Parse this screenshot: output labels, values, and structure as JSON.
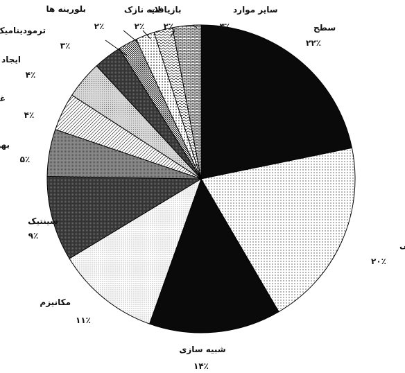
{
  "chart_data": {
    "type": "pie",
    "title": "",
    "start_angle_deg": 0,
    "direction": "clockwise",
    "slices": [
      {
        "label": "سطح",
        "value": 22,
        "value_label": "۲۲٪",
        "pattern": "solid-black"
      },
      {
        "label": "ایزومرهای فضایی",
        "value": 20,
        "value_label": "۲۰٪",
        "pattern": "dots"
      },
      {
        "label": "شبیه سازی",
        "value": 14,
        "value_label": "۱۴٪",
        "pattern": "solid-black"
      },
      {
        "label": "مکانیزم",
        "value": 11,
        "value_label": "۱۱٪",
        "pattern": "fine-dots"
      },
      {
        "label": "سینتیک",
        "value": 9,
        "value_label": "۹٪",
        "pattern": "dark-gray"
      },
      {
        "label": "بهینه سازی",
        "value": 5,
        "value_label": "۵٪",
        "pattern": "mid-gray"
      },
      {
        "label": "غیر فعال شدگی",
        "value": 4,
        "value_label": "۴٪",
        "pattern": "light-diagonal"
      },
      {
        "label": "ایجاد گروه عاملی",
        "value": 4,
        "value_label": "۴٪",
        "pattern": "light-gray"
      },
      {
        "label": "ترمودینامیک",
        "value": 3,
        "value_label": "۳٪",
        "pattern": "dark-gray"
      },
      {
        "label": "بلورینه ها",
        "value": 2,
        "value_label": "۲٪",
        "pattern": "dense-diagonal"
      },
      {
        "label": "بازیافت",
        "value": 2,
        "value_label": "۲٪",
        "pattern": "sparse-dots"
      },
      {
        "label": "لایه نازک",
        "value": 2,
        "value_label": "۲٪",
        "pattern": "waves"
      },
      {
        "label": "سایر موارد",
        "value": 3,
        "value_label": "۳٪",
        "pattern": "bricks"
      }
    ]
  }
}
